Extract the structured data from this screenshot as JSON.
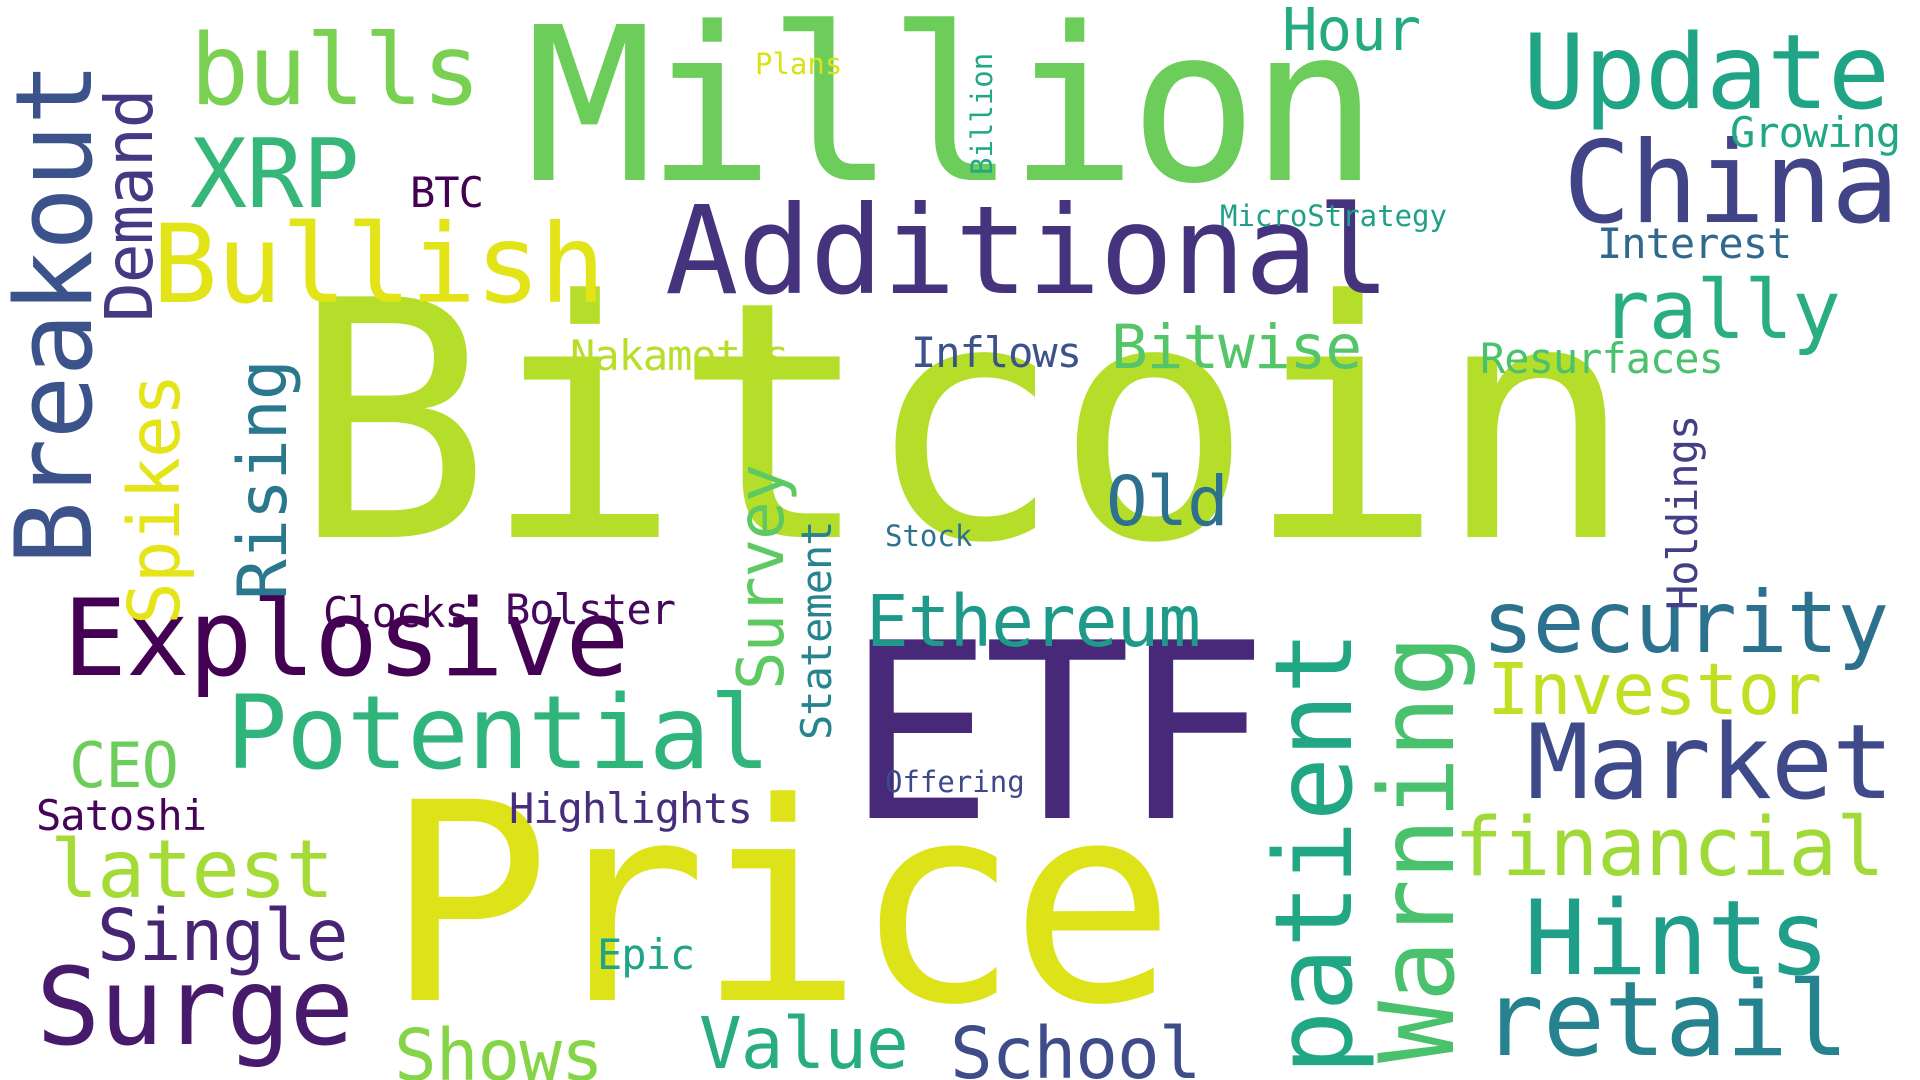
{
  "words": [
    {
      "text": "Bitcoin",
      "color": "#b5de2b"
    },
    {
      "text": "Price",
      "color": "#dde318"
    },
    {
      "text": "ETF",
      "color": "#482878"
    },
    {
      "text": "Million",
      "color": "#6ccd5a"
    },
    {
      "text": "Additional",
      "color": "#46337e"
    },
    {
      "text": "Explosive",
      "color": "#440154"
    },
    {
      "text": "Potential",
      "color": "#2fb47c"
    },
    {
      "text": "Breakout",
      "color": "#3b528b"
    },
    {
      "text": "Update",
      "color": "#20a486"
    },
    {
      "text": "China",
      "color": "#414487"
    },
    {
      "text": "Market",
      "color": "#3e4a89"
    },
    {
      "text": "Hints",
      "color": "#1f9e89"
    },
    {
      "text": "retail",
      "color": "#26828e"
    },
    {
      "text": "Surge",
      "color": "#481a6c"
    },
    {
      "text": "Bullish",
      "color": "#e2e418"
    },
    {
      "text": "bulls",
      "color": "#7ad151"
    },
    {
      "text": "XRP",
      "color": "#35b779"
    },
    {
      "text": "patient",
      "color": "#22a785"
    },
    {
      "text": "Warning",
      "color": "#4ac16d"
    },
    {
      "text": "security",
      "color": "#2c728e"
    },
    {
      "text": "financial",
      "color": "#a0da39"
    },
    {
      "text": "rally",
      "color": "#28ae80"
    },
    {
      "text": "Ethereum",
      "color": "#1f9a8a"
    },
    {
      "text": "Investor",
      "color": "#c2df23"
    },
    {
      "text": "Value",
      "color": "#27ad81"
    },
    {
      "text": "School",
      "color": "#3e4c8a"
    },
    {
      "text": "Shows",
      "color": "#86d549"
    },
    {
      "text": "latest",
      "color": "#a5db36"
    },
    {
      "text": "Single",
      "color": "#482475"
    },
    {
      "text": "Spikes",
      "color": "#e5e419"
    },
    {
      "text": "Rising",
      "color": "#2a788e"
    },
    {
      "text": "Demand",
      "color": "#443983"
    },
    {
      "text": "Survey",
      "color": "#5ec962"
    },
    {
      "text": "Old",
      "color": "#2d718e"
    },
    {
      "text": "Bitwise",
      "color": "#54c568"
    },
    {
      "text": "Hour",
      "color": "#25ab82"
    },
    {
      "text": "CEO",
      "color": "#6ccd5a"
    },
    {
      "text": "Satoshi",
      "color": "#450457"
    },
    {
      "text": "Highlights",
      "color": "#472d7b"
    },
    {
      "text": "Clocks",
      "color": "#440154"
    },
    {
      "text": "Bolster",
      "color": "#46085c"
    },
    {
      "text": "Nakamotos",
      "color": "#b8de29"
    },
    {
      "text": "Inflows",
      "color": "#3b528b"
    },
    {
      "text": "Resurfaces",
      "color": "#4ac16d"
    },
    {
      "text": "Interest",
      "color": "#31688e"
    },
    {
      "text": "Growing",
      "color": "#22a785"
    },
    {
      "text": "Statement",
      "color": "#25848e"
    },
    {
      "text": "Holdings",
      "color": "#433e85"
    },
    {
      "text": "Epic",
      "color": "#20a386"
    },
    {
      "text": "BTC",
      "color": "#440154"
    },
    {
      "text": "MicroStrategy",
      "color": "#1fa188"
    },
    {
      "text": "Billion",
      "color": "#22a884"
    },
    {
      "text": "Plans",
      "color": "#d8e219"
    },
    {
      "text": "Stock",
      "color": "#2c728e"
    },
    {
      "text": "Offering",
      "color": "#3e4989"
    }
  ]
}
